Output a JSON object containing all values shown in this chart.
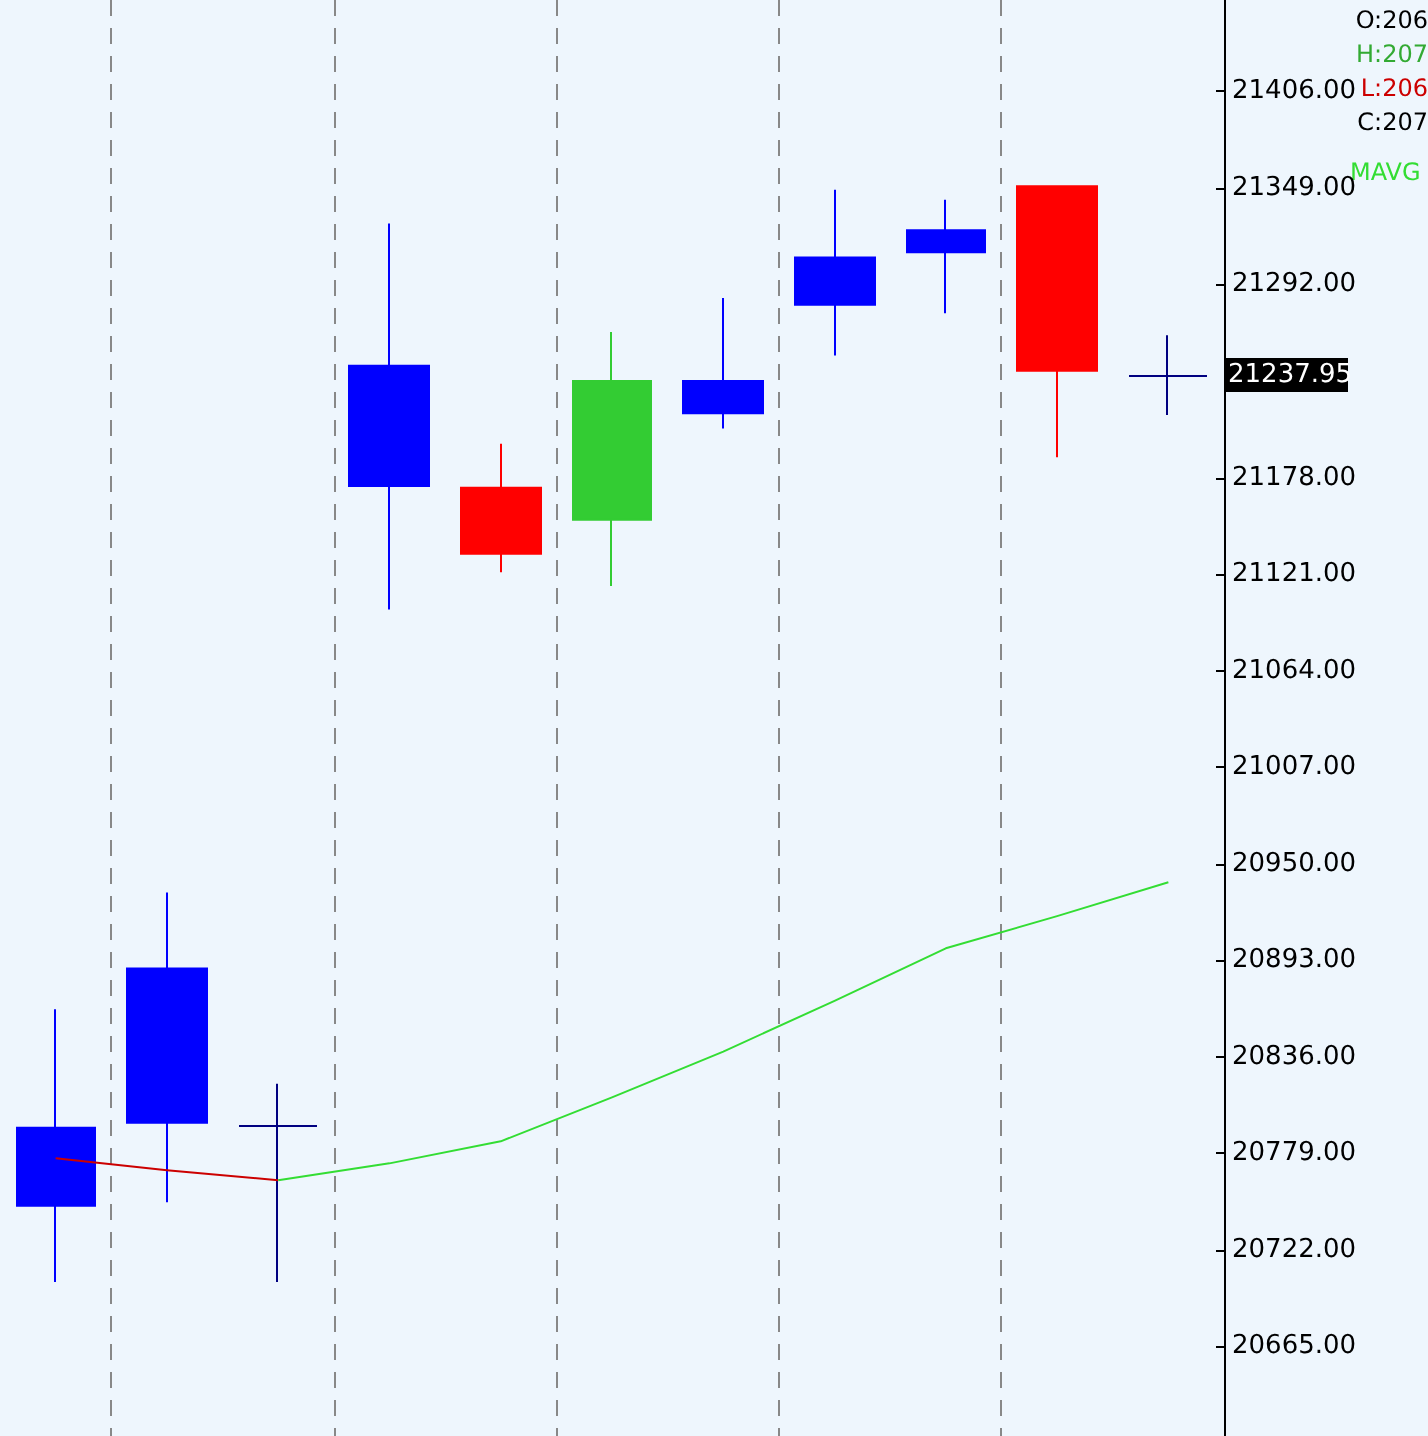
{
  "chart_data": {
    "type": "candlestick",
    "categories": [
      null,
      null,
      null,
      null,
      null,
      null,
      null,
      null,
      null,
      null,
      null
    ],
    "ohlc": [
      [
        20748,
        20864,
        20703,
        20794
      ],
      [
        20797,
        20933,
        20750,
        20888
      ],
      [
        20795,
        20820,
        20703,
        20795
      ],
      [
        21173,
        21328,
        21100,
        21244
      ],
      [
        21172,
        21198,
        21122,
        21133
      ],
      [
        21153,
        21264,
        21114,
        21235
      ],
      [
        21216,
        21284,
        21207,
        21235
      ],
      [
        21280,
        21348,
        21250,
        21308
      ],
      [
        21311,
        21342,
        21275,
        21324
      ],
      [
        21350,
        21350,
        21190,
        21241
      ],
      [
        21238,
        21262,
        21215,
        21238
      ]
    ],
    "colors": [
      "#0000ff",
      "#0000ff",
      "#000080",
      "#0000ff",
      "#ff0000",
      "#33cc33",
      "#0000ff",
      "#0000ff",
      "#0000ff",
      "#ff0000",
      "#000080"
    ],
    "series": [
      {
        "type": "line",
        "color": "#cc0000",
        "values": [
          20776,
          20769,
          20763,
          null,
          null,
          null,
          null,
          null,
          null,
          null,
          null
        ]
      },
      {
        "type": "line",
        "name": "MAVG",
        "color": "#33dd33",
        "values": [
          null,
          null,
          20763,
          20773,
          20786,
          20812,
          20839,
          20869,
          20900,
          20919,
          20939
        ]
      }
    ],
    "ylim": [
      20612,
      21460
    ],
    "yticks": [
      {
        "value": 20665,
        "label": "20665.00"
      },
      {
        "value": 20722,
        "label": "20722.00"
      },
      {
        "value": 20779,
        "label": "20779.00"
      },
      {
        "value": 20836,
        "label": "20836.00"
      },
      {
        "value": 20893,
        "label": "20893.00"
      },
      {
        "value": 20950,
        "label": "20950.00"
      },
      {
        "value": 21007,
        "label": "21007.00"
      },
      {
        "value": 21064,
        "label": "21064.00"
      },
      {
        "value": 21121,
        "label": "21121.00"
      },
      {
        "value": 21178,
        "label": "21178.00"
      },
      {
        "value": 21292,
        "label": "21292.00"
      },
      {
        "value": 21349,
        "label": "21349.00"
      },
      {
        "value": 21406,
        "label": "21406.00"
      }
    ],
    "annotations": [
      "O:206",
      "H:207",
      "L:206",
      "C:207",
      "21237.95"
    ],
    "grid": "x",
    "marker": "none",
    "line_style": "solid"
  }
}
